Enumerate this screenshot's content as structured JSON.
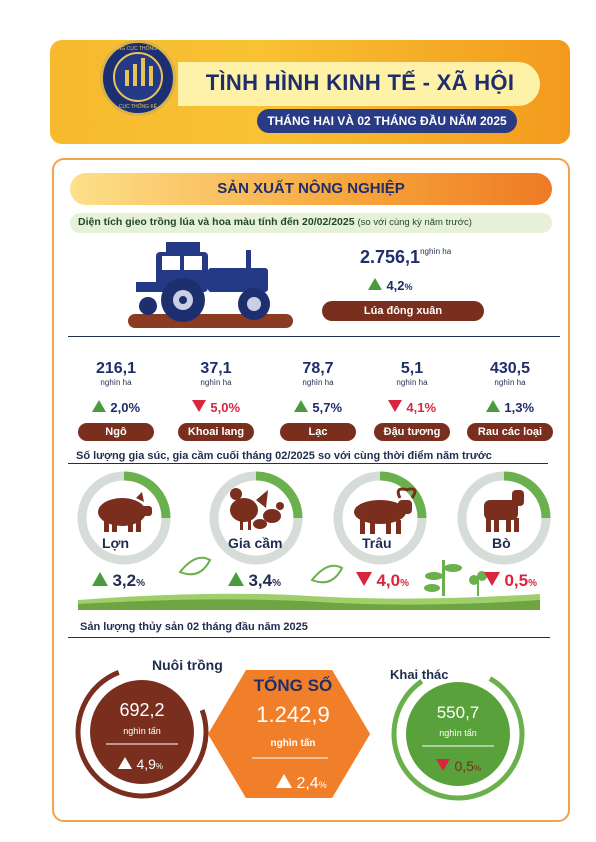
{
  "header": {
    "logo_top": "TỔNG CỤC THỐNG KÊ",
    "logo_bottom": "CỤC THỐNG KÊ",
    "title": "TÌNH HÌNH KINH TẾ - XÃ HỘI",
    "subtitle": "THÁNG HAI VÀ 02 THÁNG ĐẦU NĂM 2025"
  },
  "section": {
    "title": "SẢN XUẤT NÔNG NGHIỆP",
    "area_label": "Diện tích gieo trồng lúa và hoa màu tính đến 20/02/2025",
    "area_note": "(so với cùng kỳ năm trước)"
  },
  "rice": {
    "value": "2.756,1",
    "unit": "nghìn ha",
    "change": "4,2",
    "change_unit": "%",
    "label": "Lúa đông xuân"
  },
  "crops": [
    {
      "value": "216,1",
      "unit": "nghìn ha",
      "change": "2,0%",
      "dir": "up",
      "label": "Ngô"
    },
    {
      "value": "37,1",
      "unit": "nghìn ha",
      "change": "5,0%",
      "dir": "down",
      "label": "Khoai lang"
    },
    {
      "value": "78,7",
      "unit": "nghìn ha",
      "change": "5,7%",
      "dir": "up",
      "label": "Lạc"
    },
    {
      "value": "5,1",
      "unit": "nghìn ha",
      "change": "4,1%",
      "dir": "down",
      "label": "Đậu tương"
    },
    {
      "value": "430,5",
      "unit": "nghìn ha",
      "change": "1,3%",
      "dir": "up",
      "label": "Rau các loại"
    }
  ],
  "livestock": {
    "title": "Số lượng gia súc, gia cầm cuối tháng 02/2025 so với cùng thời điểm năm trước",
    "items": [
      {
        "name": "Lợn",
        "change": "3,2",
        "dir": "up",
        "icon": "pig-icon"
      },
      {
        "name": "Gia cầm",
        "change": "3,4",
        "dir": "up",
        "icon": "poultry-icon"
      },
      {
        "name": "Trâu",
        "change": "4,0",
        "dir": "down",
        "icon": "buffalo-icon"
      },
      {
        "name": "Bò",
        "change": "0,5",
        "dir": "down",
        "icon": "cow-icon"
      }
    ],
    "pct_unit": "%"
  },
  "fishery": {
    "title": "Sản lượng thủy sản 02 tháng đầu năm 2025",
    "farming": {
      "label": "Nuôi trồng",
      "value": "692,2",
      "unit": "nghìn tấn",
      "change": "4,9",
      "pct": "%"
    },
    "total": {
      "label": "TỔNG SỐ",
      "value": "1.242,9",
      "unit": "nghìn tấn",
      "change": "2,4",
      "pct": "%"
    },
    "catch": {
      "label": "Khai thác",
      "value": "550,7",
      "unit": "nghìn tấn",
      "change": "0,5",
      "pct": "%"
    }
  },
  "colors": {
    "navy": "#1f2d6a",
    "up_green": "#4a9b3c",
    "down_red": "#d7263d",
    "pill_brown": "#7a2f1e",
    "ring_green": "#6ab04c",
    "ring_grey": "#d6dcd8",
    "hex_orange": "#f17f2a"
  }
}
